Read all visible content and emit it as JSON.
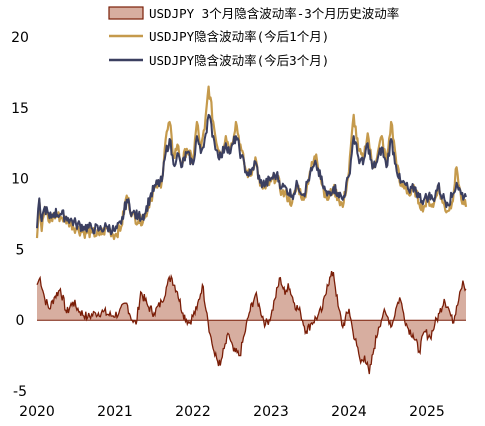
{
  "chart_data": {
    "type": "line",
    "title": "",
    "xlabel": "",
    "ylabel": "",
    "ylim": [
      -5,
      20
    ],
    "y_ticks": [
      "20",
      "15",
      "10",
      "5",
      "0",
      "-5"
    ],
    "x_ticks": [
      "2020",
      "2021",
      "2022",
      "2023",
      "2024",
      "2025"
    ],
    "x_range": [
      2020.0,
      2025.5
    ],
    "legend_position": "top-right",
    "grid": false,
    "series": [
      {
        "name": "USDJPY 3个月隐含波动率-3个月历史波动率",
        "style": "area",
        "color": "#7a1e08",
        "fill": "#d7aea0",
        "x": [
          2020.0,
          2020.04,
          2020.1,
          2020.16,
          2020.22,
          2020.3,
          2020.38,
          2020.46,
          2020.55,
          2020.65,
          2020.75,
          2020.85,
          2020.95,
          2021.05,
          2021.15,
          2021.22,
          2021.27,
          2021.33,
          2021.42,
          2021.5,
          2021.6,
          2021.67,
          2021.72,
          2021.8,
          2021.87,
          2021.95,
          2022.05,
          2022.12,
          2022.18,
          2022.22,
          2022.28,
          2022.35,
          2022.4,
          2022.46,
          2022.52,
          2022.6,
          2022.66,
          2022.72,
          2022.8,
          2022.86,
          2022.93,
          2023.0,
          2023.05,
          2023.12,
          2023.18,
          2023.22,
          2023.3,
          2023.38,
          2023.45,
          2023.52,
          2023.6,
          2023.66,
          2023.72,
          2023.8,
          2023.86,
          2023.92,
          2024.0,
          2024.05,
          2024.1,
          2024.15,
          2024.2,
          2024.26,
          2024.32,
          2024.38,
          2024.44,
          2024.5,
          2024.55,
          2024.6,
          2024.65,
          2024.7,
          2024.75,
          2024.82,
          2024.9,
          2024.97,
          2025.04,
          2025.1,
          2025.16,
          2025.22,
          2025.28,
          2025.33,
          2025.38,
          2025.42,
          2025.46,
          2025.5
        ],
        "values": [
          2.5,
          3.0,
          1.5,
          0.8,
          1.6,
          2.2,
          0.5,
          1.3,
          0.6,
          0.2,
          0.5,
          0.6,
          0.3,
          0.5,
          1.2,
          0.0,
          -0.3,
          2.0,
          1.0,
          0.5,
          1.3,
          2.5,
          3.1,
          2.0,
          0.5,
          -0.2,
          0.8,
          2.5,
          0.5,
          -1.0,
          -2.5,
          -3.2,
          -2.0,
          -1.0,
          -2.2,
          -2.5,
          -1.0,
          0.5,
          1.8,
          0.8,
          -0.3,
          0.3,
          1.5,
          3.0,
          1.8,
          2.6,
          1.2,
          0.5,
          -0.8,
          -0.2,
          0.3,
          0.8,
          2.5,
          3.4,
          1.0,
          -0.5,
          0.8,
          -0.8,
          -1.8,
          -3.0,
          -2.5,
          -3.8,
          -2.0,
          -0.5,
          0.5,
          0.2,
          -0.4,
          0.8,
          1.6,
          0.5,
          -0.5,
          -1.0,
          -2.2,
          -0.8,
          -1.2,
          -0.3,
          0.5,
          1.5,
          0.8,
          -0.2,
          1.0,
          2.0,
          2.8,
          2.2
        ]
      },
      {
        "name": "USDJPY隐含波动率(今后1个月)",
        "style": "line",
        "color": "#c59a4c",
        "x": [
          2020.0,
          2020.03,
          2020.06,
          2020.1,
          2020.16,
          2020.22,
          2020.3,
          2020.4,
          2020.5,
          2020.6,
          2020.7,
          2020.8,
          2020.9,
          2021.0,
          2021.08,
          2021.15,
          2021.22,
          2021.3,
          2021.38,
          2021.45,
          2021.52,
          2021.6,
          2021.65,
          2021.7,
          2021.75,
          2021.8,
          2021.85,
          2021.92,
          2022.0,
          2022.05,
          2022.1,
          2022.15,
          2022.2,
          2022.26,
          2022.3,
          2022.36,
          2022.42,
          2022.48,
          2022.55,
          2022.62,
          2022.68,
          2022.74,
          2022.8,
          2022.86,
          2022.93,
          2023.0,
          2023.07,
          2023.14,
          2023.2,
          2023.27,
          2023.34,
          2023.42,
          2023.5,
          2023.58,
          2023.66,
          2023.72,
          2023.8,
          2023.86,
          2023.92,
          2024.0,
          2024.06,
          2024.12,
          2024.18,
          2024.24,
          2024.3,
          2024.36,
          2024.42,
          2024.48,
          2024.54,
          2024.6,
          2024.66,
          2024.72,
          2024.78,
          2024.84,
          2024.9,
          2024.96,
          2025.02,
          2025.08,
          2025.14,
          2025.2,
          2025.26,
          2025.32,
          2025.38,
          2025.44,
          2025.5
        ],
        "values": [
          5.8,
          8.5,
          6.3,
          8.0,
          6.9,
          7.4,
          7.3,
          7.0,
          6.5,
          6.2,
          6.2,
          6.0,
          6.5,
          6.0,
          6.6,
          8.8,
          7.5,
          7.0,
          7.2,
          8.5,
          9.4,
          9.8,
          12.8,
          14.0,
          11.5,
          12.4,
          11.0,
          12.1,
          11.2,
          14.0,
          12.0,
          13.5,
          16.5,
          14.0,
          12.5,
          11.8,
          13.0,
          12.0,
          14.0,
          12.0,
          10.5,
          10.2,
          11.5,
          9.5,
          9.3,
          9.8,
          10.2,
          9.0,
          8.8,
          8.3,
          9.5,
          8.5,
          10.5,
          11.7,
          9.5,
          8.5,
          9.3,
          8.7,
          8.0,
          10.5,
          14.5,
          12.0,
          11.3,
          13.2,
          10.8,
          11.5,
          13.0,
          11.0,
          14.0,
          11.5,
          9.5,
          9.5,
          8.8,
          9.3,
          8.3,
          8.0,
          8.5,
          8.0,
          9.5,
          8.3,
          7.7,
          8.3,
          10.8,
          8.5,
          8.0
        ]
      },
      {
        "name": "USDJPY隐含波动率(今后3个月)",
        "style": "line",
        "color": "#3b3f60",
        "x": [
          2020.0,
          2020.03,
          2020.06,
          2020.1,
          2020.16,
          2020.22,
          2020.3,
          2020.4,
          2020.5,
          2020.6,
          2020.7,
          2020.8,
          2020.9,
          2021.0,
          2021.08,
          2021.15,
          2021.22,
          2021.3,
          2021.38,
          2021.45,
          2021.52,
          2021.6,
          2021.65,
          2021.7,
          2021.75,
          2021.8,
          2021.85,
          2021.92,
          2022.0,
          2022.05,
          2022.1,
          2022.15,
          2022.2,
          2022.26,
          2022.3,
          2022.36,
          2022.42,
          2022.48,
          2022.55,
          2022.62,
          2022.68,
          2022.74,
          2022.8,
          2022.86,
          2022.93,
          2023.0,
          2023.07,
          2023.14,
          2023.2,
          2023.27,
          2023.34,
          2023.42,
          2023.5,
          2023.58,
          2023.66,
          2023.72,
          2023.8,
          2023.86,
          2023.92,
          2024.0,
          2024.06,
          2024.12,
          2024.18,
          2024.24,
          2024.3,
          2024.36,
          2024.42,
          2024.48,
          2024.54,
          2024.6,
          2024.66,
          2024.72,
          2024.78,
          2024.84,
          2024.9,
          2024.96,
          2025.02,
          2025.08,
          2025.14,
          2025.2,
          2025.26,
          2025.32,
          2025.38,
          2025.44,
          2025.5
        ],
        "values": [
          6.5,
          8.6,
          7.0,
          8.0,
          7.2,
          7.6,
          7.5,
          7.2,
          6.8,
          6.6,
          6.5,
          6.4,
          6.6,
          6.3,
          6.8,
          8.5,
          7.6,
          7.3,
          7.5,
          8.7,
          9.5,
          9.8,
          11.8,
          12.8,
          11.0,
          11.8,
          10.8,
          11.8,
          11.0,
          13.0,
          11.8,
          12.8,
          14.5,
          13.0,
          12.0,
          11.5,
          12.5,
          11.8,
          13.0,
          11.6,
          10.5,
          10.3,
          11.2,
          9.7,
          9.6,
          10.0,
          10.3,
          9.4,
          9.3,
          8.8,
          9.6,
          8.9,
          10.3,
          11.0,
          9.6,
          8.8,
          9.4,
          9.0,
          8.5,
          10.2,
          13.0,
          11.5,
          11.0,
          12.5,
          10.7,
          11.2,
          12.2,
          10.8,
          12.8,
          11.0,
          9.7,
          9.6,
          9.0,
          9.4,
          8.7,
          8.5,
          8.8,
          8.5,
          9.5,
          8.7,
          8.3,
          8.7,
          9.7,
          8.9,
          8.7
        ]
      }
    ]
  }
}
